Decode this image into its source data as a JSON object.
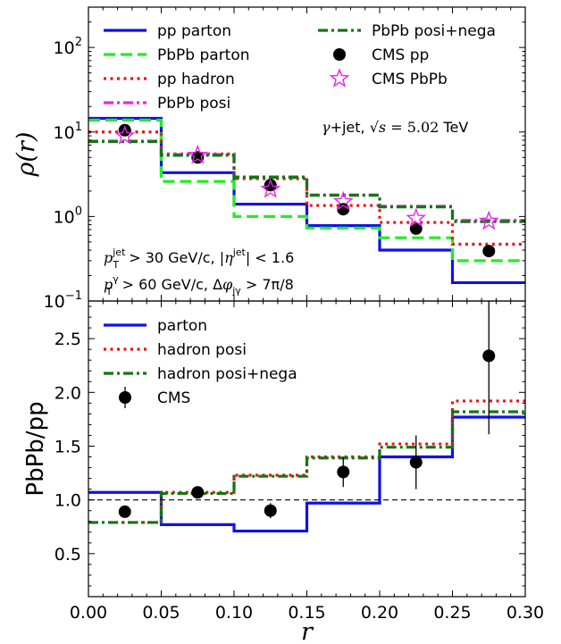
{
  "chart_data": [
    {
      "type": "line",
      "panel": "top",
      "ylabel_math": "ρ(r)",
      "yscale": "log",
      "ylim": [
        0.1,
        300
      ],
      "xlim": [
        0.0,
        0.3
      ],
      "y_ticks": [
        {
          "v": 0.1,
          "base": "10",
          "exp": "−1"
        },
        {
          "v": 1,
          "base": "10",
          "exp": "0"
        },
        {
          "v": 10,
          "base": "10",
          "exp": "1"
        },
        {
          "v": 100,
          "base": "10",
          "exp": "2"
        }
      ],
      "bin_edges": [
        0.0,
        0.05,
        0.1,
        0.15,
        0.2,
        0.25,
        0.3
      ],
      "series": [
        {
          "name": "pp parton",
          "style": "solid",
          "color": "#1010ee",
          "values": [
            14.5,
            3.3,
            1.4,
            0.78,
            0.4,
            0.165
          ]
        },
        {
          "name": "PbPb parton",
          "style": "dashed",
          "color": "#22ee22",
          "values": [
            13.8,
            2.6,
            1.0,
            0.73,
            0.56,
            0.3
          ]
        },
        {
          "name": "pp hadron",
          "style": "dotted",
          "color": "#ee1111",
          "values": [
            10.0,
            5.5,
            2.8,
            1.35,
            0.85,
            0.47
          ]
        },
        {
          "name": "PbPb posi",
          "style": "dashdot",
          "color": "#ee22ee",
          "values": [
            7.8,
            5.4,
            2.95,
            1.8,
            1.32,
            0.9
          ]
        },
        {
          "name": "PbPb posi+nega",
          "style": "dashdot",
          "color": "#117711",
          "values": [
            7.7,
            5.3,
            2.9,
            1.78,
            1.3,
            0.87
          ]
        }
      ],
      "points": [
        {
          "name": "CMS pp",
          "marker": "circle",
          "color": "#000000",
          "x": [
            0.025,
            0.075,
            0.125,
            0.175,
            0.225,
            0.275
          ],
          "y": [
            10.5,
            5.0,
            2.35,
            1.22,
            0.72,
            0.39
          ]
        },
        {
          "name": "CMS PbPb",
          "marker": "star",
          "color": "#ee22ee",
          "x": [
            0.025,
            0.075,
            0.125,
            0.175,
            0.225,
            0.275
          ],
          "y": [
            9.0,
            5.3,
            2.1,
            1.5,
            0.95,
            0.88
          ]
        }
      ],
      "annotation_energy": {
        "prefix": "γ+jet, ",
        "sqrt": "√",
        "s": "s",
        "rest": " = 5.02",
        "unit": " TeV"
      },
      "annotation_cuts": [
        {
          "sym": "p",
          "sub": "T",
          "sup": "jet",
          "mid": " > 30 GeV/c, |",
          "sym2": "η",
          "sup2": "jet",
          "end": "| < 1.6"
        },
        {
          "sym": "p",
          "sub": "T",
          "sup": "γ",
          "mid": " > 60 GeV/c, Δ",
          "sym2": "φ",
          "sub2": "jγ",
          "end": " > 7π/8"
        }
      ]
    },
    {
      "type": "line",
      "panel": "bottom",
      "ylabel": "PbPb/pp",
      "xlabel_math": "r",
      "ylim": [
        0.1,
        2.85
      ],
      "xlim": [
        0.0,
        0.3
      ],
      "y_ticks": [
        "0.5",
        "1.0",
        "1.5",
        "2.0",
        "2.5"
      ],
      "x_ticks": [
        "0.00",
        "0.05",
        "0.10",
        "0.15",
        "0.20",
        "0.25",
        "0.30"
      ],
      "reference_line": 1.0,
      "bin_edges": [
        0.0,
        0.05,
        0.1,
        0.15,
        0.2,
        0.25,
        0.3
      ],
      "series": [
        {
          "name": "parton",
          "style": "solid",
          "color": "#1010ee",
          "values": [
            1.07,
            0.77,
            0.71,
            0.97,
            1.4,
            1.77
          ]
        },
        {
          "name": "hadron posi",
          "style": "dotted",
          "color": "#ee1111",
          "values": [
            0.79,
            1.07,
            1.23,
            1.4,
            1.52,
            1.92
          ]
        },
        {
          "name": "hadron posi+nega",
          "style": "dashdot",
          "color": "#117711",
          "values": [
            0.79,
            1.06,
            1.22,
            1.39,
            1.49,
            1.82
          ]
        }
      ],
      "points": [
        {
          "name": "CMS",
          "marker": "circle",
          "color": "#000000",
          "x": [
            0.025,
            0.075,
            0.125,
            0.175,
            0.225,
            0.275
          ],
          "y": [
            0.89,
            1.07,
            0.9,
            1.26,
            1.35,
            2.34
          ],
          "err": [
            0.05,
            0.04,
            0.07,
            0.14,
            0.25,
            0.73
          ]
        }
      ]
    }
  ]
}
